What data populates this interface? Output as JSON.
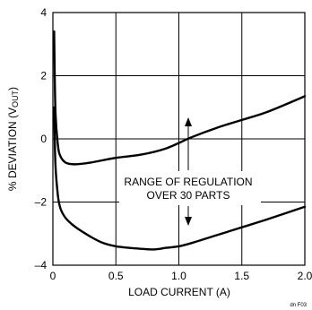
{
  "chart_data": {
    "type": "line",
    "title": "",
    "xlabel": "LOAD CURRENT (A)",
    "ylabel": "% DEVIATION (V",
    "ylabel_sub": "OUT",
    "ylabel_close": ")",
    "xlim": [
      0,
      2.0
    ],
    "ylim": [
      -4,
      4
    ],
    "x_ticks": [
      0,
      0.5,
      1.0,
      1.5,
      2.0
    ],
    "y_ticks": [
      -4,
      -2,
      0,
      2,
      4
    ],
    "x_tick_labels": [
      "0",
      "0.5",
      "1.0",
      "1.5",
      "2.0"
    ],
    "y_tick_labels": [
      "–4",
      "–2",
      "0",
      "2",
      "4"
    ],
    "grid": true,
    "series": [
      {
        "x": [
          0.01,
          0.02,
          0.04,
          0.06,
          0.1,
          0.15,
          0.2,
          0.3,
          0.5,
          0.7,
          0.9,
          1.1,
          1.3,
          1.5,
          1.7,
          2.0
        ],
        "y": [
          3.4,
          0.9,
          -0.2,
          -0.55,
          -0.75,
          -0.8,
          -0.8,
          -0.75,
          -0.6,
          -0.5,
          -0.3,
          0.05,
          0.35,
          0.6,
          0.85,
          1.35
        ]
      },
      {
        "x": [
          0.01,
          0.02,
          0.04,
          0.06,
          0.1,
          0.15,
          0.2,
          0.3,
          0.4,
          0.5,
          0.6,
          0.7,
          0.8,
          0.9,
          1.0,
          1.1,
          1.3,
          1.5,
          1.7,
          2.0
        ],
        "y": [
          1.0,
          -0.8,
          -1.8,
          -2.2,
          -2.5,
          -2.7,
          -2.85,
          -3.1,
          -3.3,
          -3.4,
          -3.45,
          -3.48,
          -3.5,
          -3.45,
          -3.4,
          -3.3,
          -3.05,
          -2.8,
          -2.55,
          -2.15
        ]
      }
    ],
    "annotations": [
      {
        "text": "RANGE OF REGULATION"
      },
      {
        "text": "OVER 30 PARTS"
      }
    ],
    "figure_id": "dn F03"
  }
}
